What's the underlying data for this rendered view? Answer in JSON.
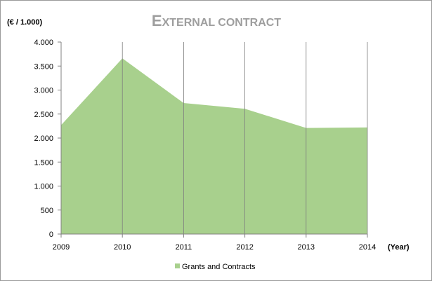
{
  "chart_data": {
    "type": "area",
    "title_first": "E",
    "title_rest": "XTERNAL CONTRACT",
    "ylabel": "(€ / 1.000)",
    "xlabel": "(Year)",
    "categories": [
      "2009",
      "2010",
      "2011",
      "2012",
      "2013",
      "2014"
    ],
    "series": [
      {
        "name": "Grants and Contracts",
        "values": [
          2270,
          3660,
          2730,
          2610,
          2210,
          2220
        ]
      }
    ],
    "y_ticks": [
      0,
      500,
      1000,
      1500,
      2000,
      2500,
      3000,
      3500,
      4000
    ],
    "y_tick_labels": [
      "0",
      "500",
      "1.000",
      "1.500",
      "2.000",
      "2.500",
      "3.000",
      "3.500",
      "4.000"
    ],
    "ylim": [
      0,
      4000
    ],
    "grid": "vertical",
    "legend": "bottom",
    "colors": {
      "area": "#a8d08d",
      "gridline": "#7f7f7f",
      "axis": "#808080",
      "title": "#9e9e9e"
    }
  }
}
